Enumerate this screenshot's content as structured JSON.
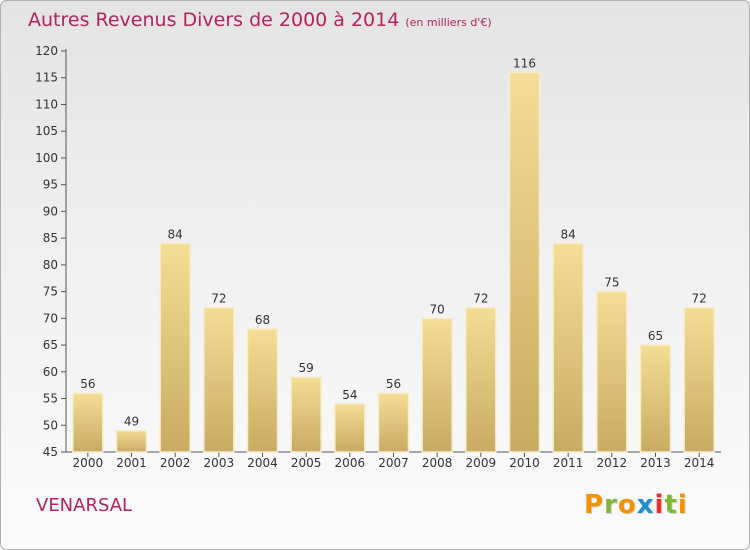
{
  "header": {
    "title": "Autres Revenus Divers de 2000 à 2014",
    "unit": "(en milliers d'€)"
  },
  "footer": {
    "commune": "VENARSAL",
    "logo_text": "Proxiti"
  },
  "colors": {
    "title": "#b5225c",
    "bar_light": "#f4dd95",
    "bar_dark": "#c8ab62",
    "logo_letters": [
      "#f39200",
      "#7fb539",
      "#f39200",
      "#1f8ed0",
      "#e5312d",
      "#7fb539",
      "#f39200"
    ]
  },
  "chart_data": {
    "type": "bar",
    "title": "Autres Revenus Divers de 2000 à 2014",
    "subtitle": "(en milliers d'€)",
    "categories": [
      "2000",
      "2001",
      "2002",
      "2003",
      "2004",
      "2005",
      "2006",
      "2007",
      "2008",
      "2009",
      "2010",
      "2011",
      "2012",
      "2013",
      "2014"
    ],
    "values": [
      56,
      49,
      84,
      72,
      68,
      59,
      54,
      56,
      70,
      72,
      116,
      84,
      75,
      65,
      72
    ],
    "ylim": [
      45,
      120
    ],
    "yticks": [
      45,
      50,
      55,
      60,
      65,
      70,
      75,
      80,
      85,
      90,
      95,
      100,
      105,
      110,
      115,
      120
    ],
    "grid": false,
    "legend": "none"
  }
}
